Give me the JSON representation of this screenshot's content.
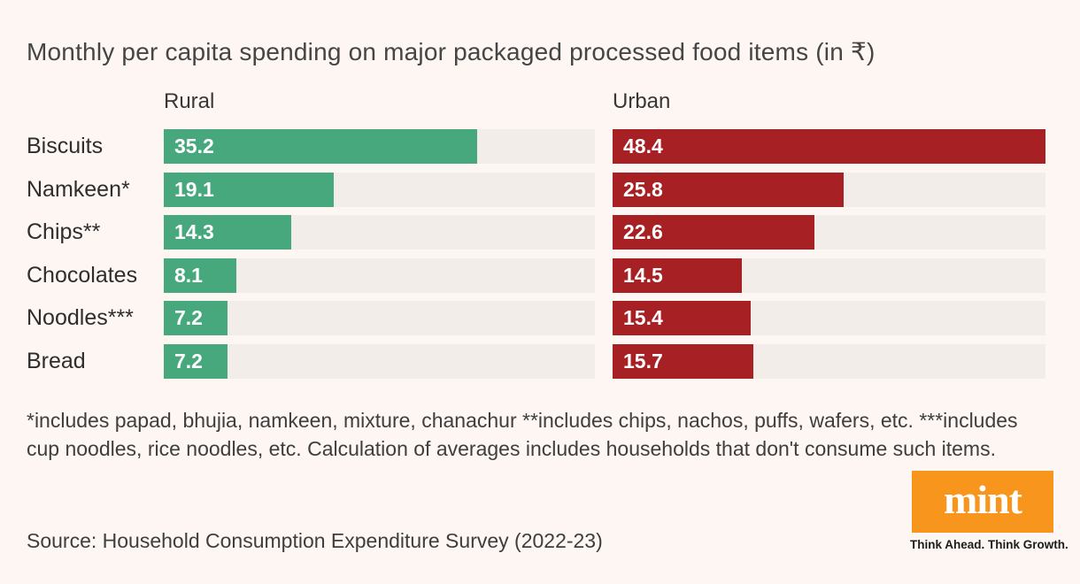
{
  "page": {
    "background": "#fdf6f2",
    "title": "Monthly per capita spending on major packaged processed food items (in ₹)"
  },
  "chart_data": {
    "type": "bar",
    "orientation": "horizontal",
    "title": "Monthly per capita spending on major packaged processed food items (in ₹)",
    "categories": [
      "Biscuits",
      "Namkeen*",
      "Chips**",
      "Chocolates",
      "Noodles***",
      "Bread"
    ],
    "series": [
      {
        "name": "Rural",
        "color": "#47a87e",
        "values": [
          35.2,
          19.1,
          14.3,
          8.1,
          7.2,
          7.2
        ]
      },
      {
        "name": "Urban",
        "color": "#a62024",
        "values": [
          48.4,
          25.8,
          22.6,
          14.5,
          15.4,
          15.7
        ]
      }
    ],
    "xlim": [
      0,
      48.4
    ],
    "value_labels": "inside-start-white-bold",
    "track_color": "#f2ede9",
    "grid": "off",
    "legend_position": "column-headers-above-bars"
  },
  "footnote": "*includes papad, bhujia, namkeen, mixture, chanachur **includes chips, nachos, puffs, wafers, etc. ***includes cup noodles, rice noodles, etc. Calculation of averages includes households that don't consume such items.",
  "source": "Source: Household Consumption Expenditure Survey (2022-23)",
  "branding": {
    "logo_text": "mint",
    "logo_bg": "#f7951d",
    "tagline": "Think Ahead. Think Growth."
  }
}
